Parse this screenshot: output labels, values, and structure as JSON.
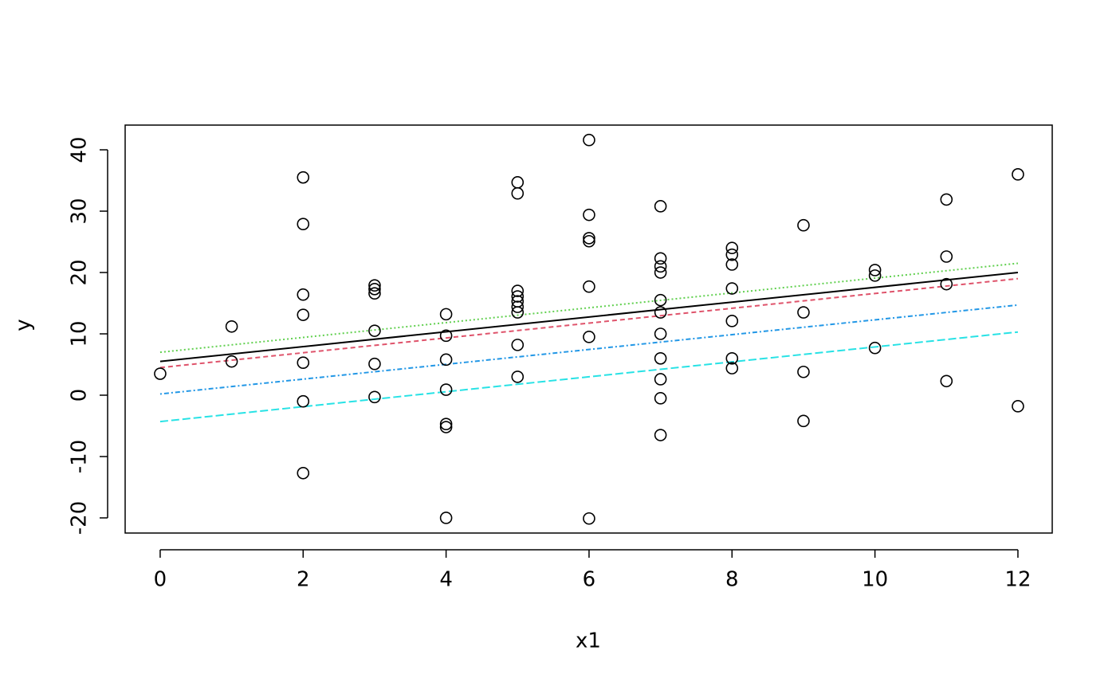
{
  "chart_data": {
    "type": "scatter",
    "x_label": "x1",
    "y_label": "y",
    "xlim": [
      -0.49,
      12.48
    ],
    "ylim": [
      -22.47,
      44.03
    ],
    "xticks": [
      0,
      2,
      4,
      6,
      8,
      10,
      12
    ],
    "yticks": [
      -20,
      -10,
      0,
      10,
      20,
      30,
      40
    ],
    "point_color": "#000000",
    "x": [
      0,
      1,
      1,
      2,
      2,
      2,
      2,
      2,
      2,
      2,
      3,
      3,
      3,
      3,
      3,
      3,
      4,
      4,
      4,
      4,
      4,
      4,
      4,
      5,
      5,
      5,
      5,
      5,
      5,
      5,
      5,
      5,
      6,
      6,
      6,
      6,
      6,
      6,
      6,
      7,
      7,
      7,
      7,
      7,
      7,
      7,
      7,
      7,
      7,
      7,
      8,
      8,
      8,
      8,
      8,
      8,
      8,
      9,
      9,
      9,
      9,
      10,
      10,
      10,
      11,
      11,
      11,
      11,
      12,
      12
    ],
    "values": [
      3.5,
      11.2,
      5.5,
      35.5,
      27.9,
      16.4,
      13.1,
      5.3,
      -1.0,
      -12.7,
      17.9,
      17.3,
      16.6,
      10.5,
      5.1,
      -0.3,
      13.2,
      9.7,
      5.8,
      0.9,
      -4.7,
      -5.2,
      -20,
      34.7,
      32.9,
      17,
      16.1,
      15.3,
      14.4,
      13.5,
      8.2,
      3.0,
      41.6,
      29.4,
      25.6,
      25.1,
      17.7,
      9.5,
      -20.1,
      30.8,
      22.3,
      21,
      20,
      15.5,
      13.5,
      10,
      6,
      2.6,
      -0.5,
      -6.5,
      24,
      22.9,
      21.3,
      17.4,
      12.1,
      6,
      4.4,
      27.7,
      13.5,
      3.8,
      -4.2,
      20.4,
      19.5,
      7.7,
      31.9,
      22.6,
      18.1,
      2.3,
      36,
      -1.8
    ],
    "lines": [
      {
        "color": "#000000",
        "dash": "none",
        "x": [
          0,
          12
        ],
        "values": [
          5.5,
          20
        ]
      },
      {
        "color": "#df536b",
        "dash": "6 4",
        "x": [
          0,
          12
        ],
        "values": [
          4.5,
          19
        ]
      },
      {
        "color": "#61d04f",
        "dash": "2 3",
        "x": [
          0,
          12
        ],
        "values": [
          7,
          21.5
        ]
      },
      {
        "color": "#2297e6",
        "dash": "2 3 6 3",
        "x": [
          0,
          12
        ],
        "values": [
          0.2,
          14.7
        ]
      },
      {
        "color": "#28e2e5",
        "dash": "10 4",
        "x": [
          0,
          12
        ],
        "values": [
          -4.3,
          10.3
        ]
      }
    ]
  }
}
